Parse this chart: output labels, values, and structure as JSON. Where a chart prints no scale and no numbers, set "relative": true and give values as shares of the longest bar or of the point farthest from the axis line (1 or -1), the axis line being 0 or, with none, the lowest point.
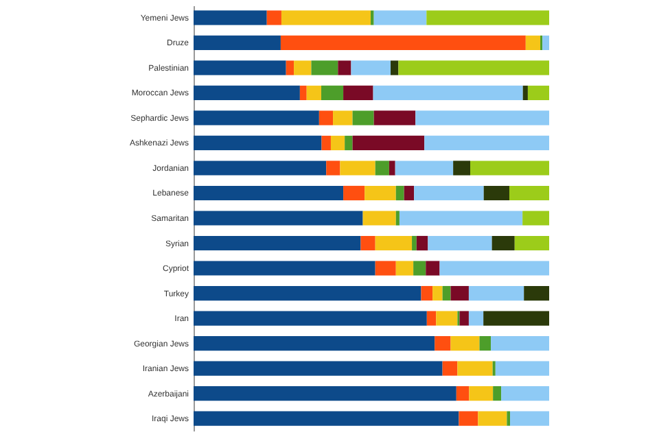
{
  "chart_data": {
    "type": "bar",
    "orientation": "horizontal",
    "stacked": true,
    "relative": true,
    "categories": [
      "Yemeni Jews",
      "Druze",
      "Palestinian",
      "Moroccan Jews",
      "Sephardic Jews",
      "Ashkenazi Jews",
      "Jordanian",
      "Lebanese",
      "Samaritan",
      "Syrian",
      "Cypriot",
      "Turkey",
      "Iran",
      "Georgian Jews",
      "Iranian Jews",
      "Azerbaijani",
      "Iraqi Jews"
    ],
    "series": [
      {
        "color": "#0d4a8a",
        "values": [
          0.206,
          0.245,
          0.26,
          0.299,
          0.353,
          0.36,
          0.373,
          0.421,
          0.476,
          0.47,
          0.511,
          0.64,
          0.656,
          0.678,
          0.7,
          0.739,
          0.746
        ]
      },
      {
        "color": "#ff4f10",
        "values": [
          0.041,
          0.689,
          0.022,
          0.019,
          0.039,
          0.026,
          0.039,
          0.06,
          0,
          0.041,
          0.058,
          0.032,
          0.026,
          0.045,
          0.042,
          0.036,
          0.054
        ]
      },
      {
        "color": "#f5c518",
        "values": [
          0.251,
          0.041,
          0.049,
          0.041,
          0.055,
          0.039,
          0.099,
          0.088,
          0.093,
          0.103,
          0.049,
          0.028,
          0.06,
          0.081,
          0.099,
          0.067,
          0.081
        ]
      },
      {
        "color": "#4d9e2a",
        "values": [
          0.009,
          0.006,
          0.075,
          0.062,
          0.06,
          0.022,
          0.039,
          0.023,
          0.01,
          0.013,
          0.035,
          0.023,
          0.006,
          0.032,
          0.008,
          0.023,
          0.009
        ]
      },
      {
        "color": "#7a0a26",
        "values": [
          0,
          0,
          0.037,
          0.084,
          0.117,
          0.202,
          0.017,
          0.028,
          0,
          0.032,
          0.039,
          0.051,
          0.026,
          0,
          0,
          0,
          0
        ]
      },
      {
        "color": "#8ecaf5",
        "values": [
          0.148,
          0.019,
          0.111,
          0.421,
          0.376,
          0.351,
          0.163,
          0.196,
          0.346,
          0.18,
          0.308,
          0.155,
          0.041,
          0.164,
          0.151,
          0.135,
          0.11
        ]
      },
      {
        "color": "#2b3a0a",
        "values": [
          0,
          0,
          0.022,
          0.014,
          0,
          0,
          0.048,
          0.072,
          0,
          0.064,
          0,
          0.071,
          0.185,
          0,
          0,
          0,
          0
        ]
      },
      {
        "color": "#9ccc1a",
        "values": [
          0.345,
          0,
          0.424,
          0.06,
          0,
          0,
          0.222,
          0.112,
          0.075,
          0.097,
          0,
          0,
          0,
          0,
          0,
          0,
          0
        ]
      }
    ]
  }
}
